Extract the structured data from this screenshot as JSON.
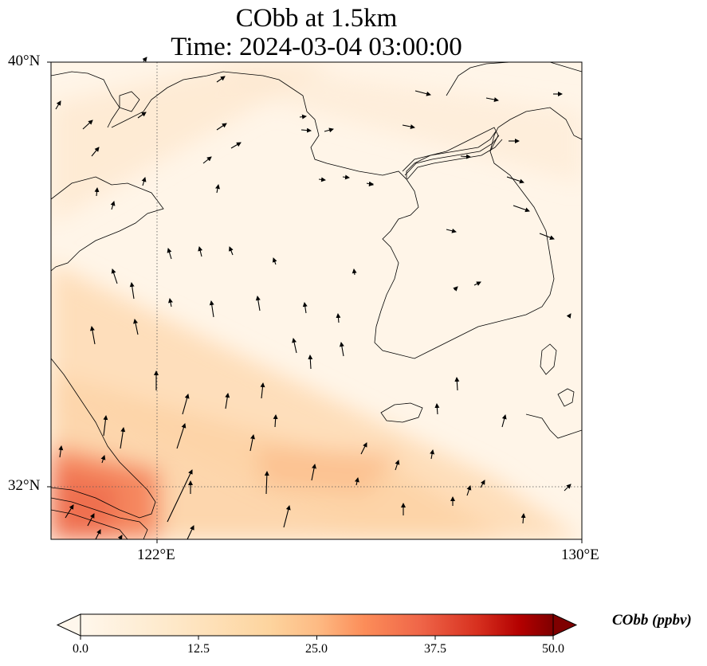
{
  "title": {
    "line1": "CObb at 1.5km",
    "line2": "Time: 2024-03-04 03:00:00"
  },
  "axes": {
    "lat_labels": [
      "40°N",
      "32°N"
    ],
    "lon_labels": [
      "122°E",
      "130°E"
    ],
    "lat_range": [
      31,
      40
    ],
    "lon_range": [
      120,
      130
    ],
    "gridlines": {
      "lat": [
        32
      ],
      "lon": [
        122
      ],
      "style": "dotted"
    }
  },
  "colorbar": {
    "title": "CObb (ppbv)",
    "ticks": [
      "0.0",
      "12.5",
      "25.0",
      "37.5",
      "50.0"
    ],
    "range": [
      0,
      50
    ],
    "colormap": "OrRd",
    "extend": "both"
  },
  "colors": {
    "low": "#fff7ec",
    "mid": "#fdbb84",
    "high": "#7f0000"
  },
  "chart_data": {
    "type": "heatmap",
    "variable": "CObb",
    "level": "1.5km",
    "overlay": "wind vectors"
  }
}
